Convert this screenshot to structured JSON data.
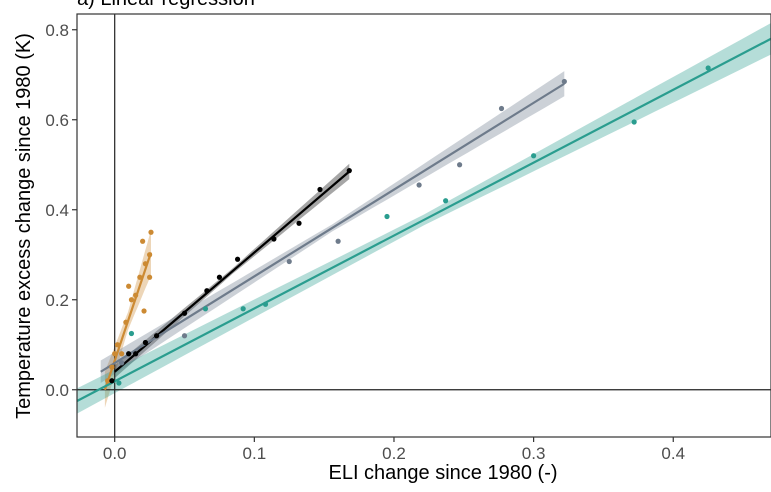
{
  "chart_data": {
    "type": "scatter",
    "title": "a) Linear regression",
    "xlabel": "ELI change since 1980 (-)",
    "ylabel": "Temperature excess change since 1980 (K)",
    "xlim": [
      -0.027,
      0.47
    ],
    "ylim": [
      -0.105,
      0.835
    ],
    "xticks": [
      0.0,
      0.1,
      0.2,
      0.3,
      0.4
    ],
    "xtick_labels": [
      "0.0",
      "0.1",
      "0.2",
      "0.3",
      "0.4"
    ],
    "yticks": [
      0.0,
      0.2,
      0.4,
      0.6,
      0.8
    ],
    "ytick_labels": [
      "0.0",
      "0.2",
      "0.4",
      "0.6",
      "0.8"
    ],
    "grid": false,
    "reference_lines": {
      "x": 0,
      "y": 0
    },
    "series": [
      {
        "color": "#cc8a33",
        "points": [
          [
            -0.005,
            0.02
          ],
          [
            -0.002,
            0.05
          ],
          [
            0.0,
            0.08
          ],
          [
            0.002,
            0.1
          ],
          [
            0.005,
            0.08
          ],
          [
            0.008,
            0.15
          ],
          [
            0.01,
            0.23
          ],
          [
            0.012,
            0.2
          ],
          [
            0.015,
            0.21
          ],
          [
            0.018,
            0.25
          ],
          [
            0.02,
            0.33
          ],
          [
            0.021,
            0.175
          ],
          [
            0.022,
            0.28
          ],
          [
            0.025,
            0.25
          ],
          [
            0.025,
            0.3
          ],
          [
            0.026,
            0.35
          ]
        ],
        "fit": {
          "x_start": -0.007,
          "y_start": 0.0,
          "x_end": 0.026,
          "y_end": 0.305
        },
        "ci_halfwidth": {
          "start": 0.04,
          "mid": 0.02,
          "end": 0.05
        }
      },
      {
        "color": "#000000",
        "points": [
          [
            -0.002,
            0.02
          ],
          [
            0.01,
            0.08
          ],
          [
            0.015,
            0.08
          ],
          [
            0.022,
            0.105
          ],
          [
            0.03,
            0.12
          ],
          [
            0.05,
            0.17
          ],
          [
            0.066,
            0.22
          ],
          [
            0.075,
            0.25
          ],
          [
            0.088,
            0.29
          ],
          [
            0.114,
            0.335
          ],
          [
            0.132,
            0.37
          ],
          [
            0.147,
            0.445
          ],
          [
            0.168,
            0.487
          ]
        ],
        "fit": {
          "x_start": 0.0,
          "y_start": 0.04,
          "x_end": 0.168,
          "y_end": 0.485
        },
        "ci_halfwidth": {
          "start": 0.014,
          "mid": 0.006,
          "end": 0.017
        }
      },
      {
        "color": "#6e7b8b",
        "points": [
          [
            0.005,
            0.06
          ],
          [
            0.05,
            0.12
          ],
          [
            0.125,
            0.285
          ],
          [
            0.16,
            0.33
          ],
          [
            0.218,
            0.455
          ],
          [
            0.247,
            0.5
          ],
          [
            0.277,
            0.625
          ],
          [
            0.322,
            0.685
          ]
        ],
        "fit": {
          "x_start": -0.01,
          "y_start": 0.04,
          "x_end": 0.322,
          "y_end": 0.68
        },
        "ci_halfwidth": {
          "start": 0.025,
          "mid": 0.008,
          "end": 0.028
        }
      },
      {
        "color": "#2a9d8f",
        "points": [
          [
            0.003,
            0.015
          ],
          [
            0.012,
            0.125
          ],
          [
            0.065,
            0.18
          ],
          [
            0.092,
            0.18
          ],
          [
            0.108,
            0.19
          ],
          [
            0.195,
            0.385
          ],
          [
            0.237,
            0.42
          ],
          [
            0.3,
            0.52
          ],
          [
            0.372,
            0.595
          ],
          [
            0.425,
            0.715
          ]
        ],
        "fit": {
          "x_start": -0.027,
          "y_start": -0.025,
          "x_end": 0.47,
          "y_end": 0.78
        },
        "ci_halfwidth": {
          "start": 0.028,
          "mid": 0.012,
          "end": 0.035
        }
      }
    ]
  }
}
